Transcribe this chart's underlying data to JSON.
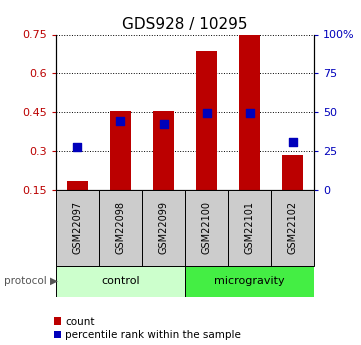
{
  "title": "GDS928 / 10295",
  "samples": [
    "GSM22097",
    "GSM22098",
    "GSM22099",
    "GSM22100",
    "GSM22101",
    "GSM22102"
  ],
  "groups": [
    "control",
    "control",
    "control",
    "microgravity",
    "microgravity",
    "microgravity"
  ],
  "bar_heights": [
    0.185,
    0.455,
    0.455,
    0.685,
    0.755,
    0.285
  ],
  "blue_dots": [
    0.315,
    0.415,
    0.405,
    0.445,
    0.445,
    0.335
  ],
  "ylim_left": [
    0.15,
    0.75
  ],
  "ylim_right": [
    0,
    100
  ],
  "yticks_left": [
    0.15,
    0.3,
    0.45,
    0.6,
    0.75
  ],
  "ytick_labels_left": [
    "0.15",
    "0.3",
    "0.45",
    "0.6",
    "0.75"
  ],
  "yticks_right": [
    0,
    25,
    50,
    75,
    100
  ],
  "ytick_labels_right": [
    "0",
    "25",
    "50",
    "75",
    "100%"
  ],
  "bar_color": "#bb0000",
  "dot_color": "#0000bb",
  "control_color": "#ccffcc",
  "microgravity_color": "#44ee44",
  "sample_box_color": "#cccccc",
  "legend_items": [
    "count",
    "percentile rank within the sample"
  ],
  "bar_width": 0.5,
  "dot_size": 40,
  "grid_color": "#000000",
  "title_fontsize": 11,
  "tick_fontsize": 8,
  "label_fontsize": 8
}
